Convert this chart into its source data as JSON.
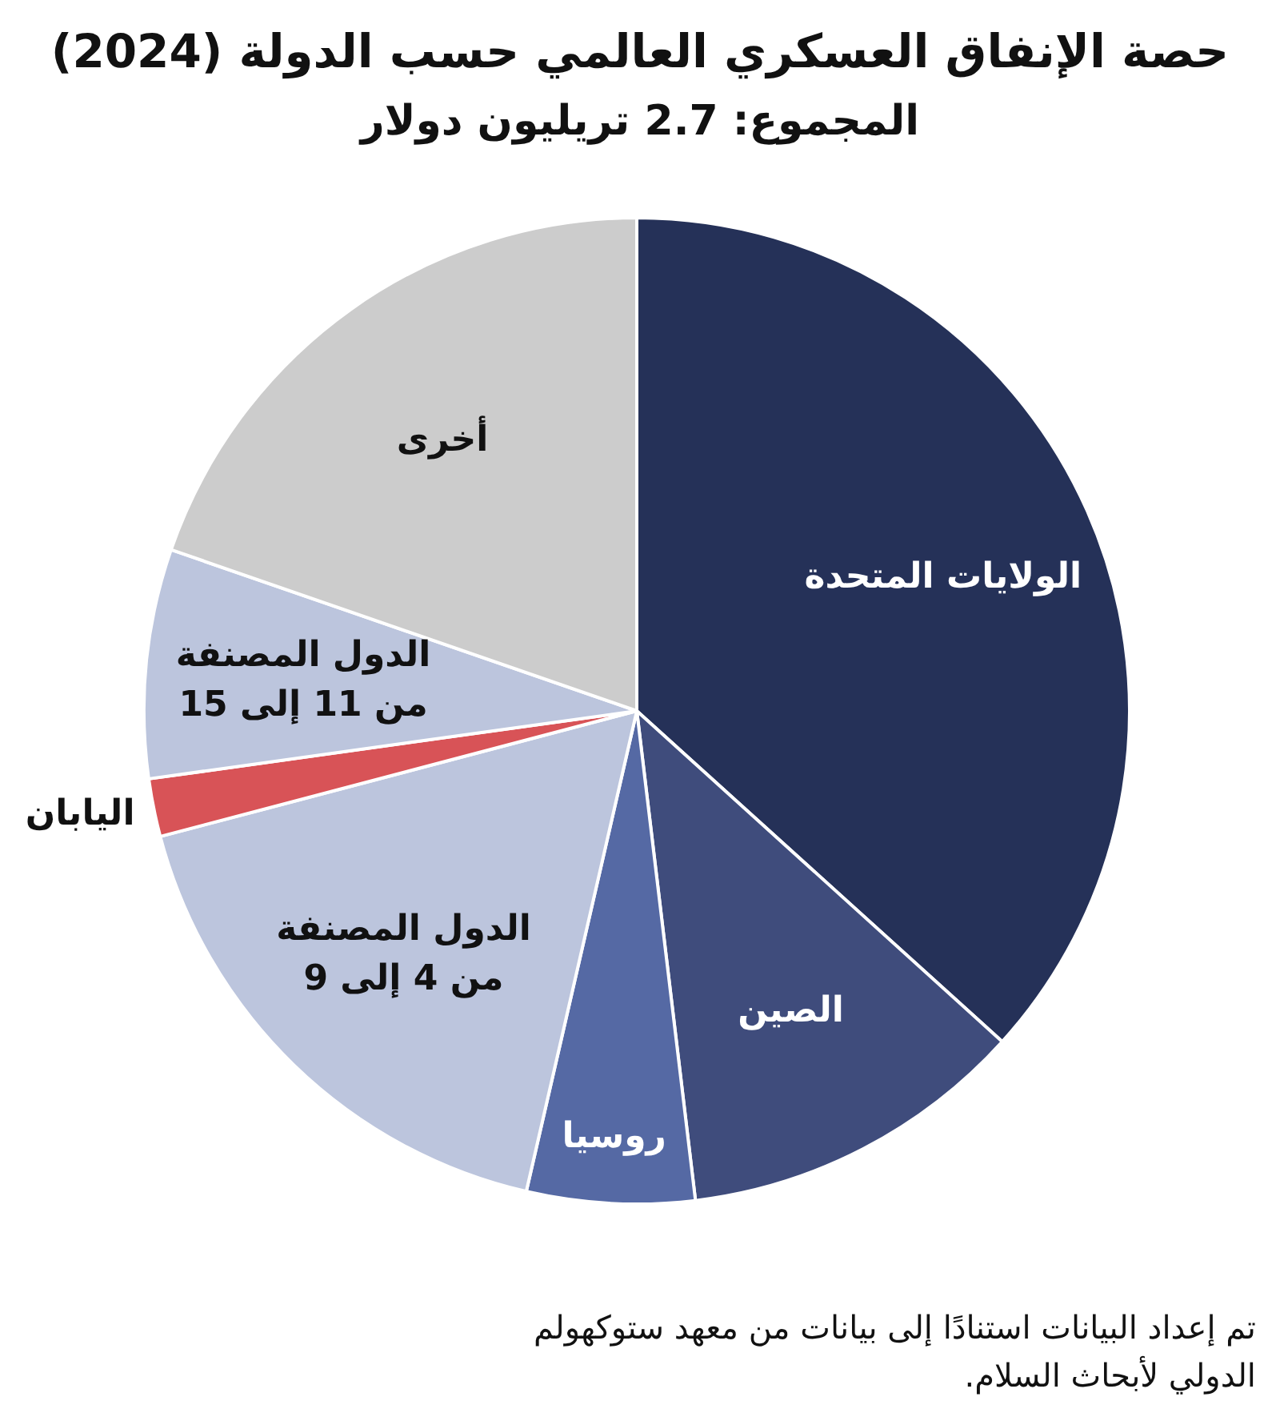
{
  "chart_data": {
    "type": "pie",
    "title": "حصة الإنفاق العسكري العالمي حسب الدولة (2024)",
    "subtitle": "المجموع: 2.7 تريليون دولار",
    "categories": [
      "الولايات المتحدة",
      "الصين",
      "روسيا",
      "الدول المصنفة\nمن 4 إلى 9",
      "اليابان",
      "الدول المصنفة\nمن 11 إلى 15",
      "أخرى"
    ],
    "values": [
      36.7,
      11.4,
      5.5,
      17.3,
      1.9,
      7.5,
      19.7
    ],
    "colors": [
      "#253158",
      "#3f4c7c",
      "#5569a4",
      "#bcc5dd",
      "#d85357",
      "#bcc5dd",
      "#cccccc"
    ],
    "annotations": [
      "تم إعداد البيانات استنادًا إلى بيانات من معهد ستوكهولم الدولي لأبحاث السلام."
    ]
  }
}
